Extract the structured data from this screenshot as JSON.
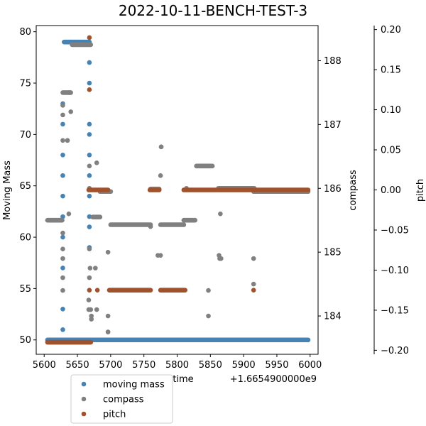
{
  "chart_data": {
    "type": "scatter",
    "title": "2022-10-11-BENCH-TEST-3",
    "xlabel": "time",
    "x_offset_label": "+1.6654900000e9",
    "x_ticks": [
      "5600",
      "5650",
      "5700",
      "5750",
      "5800",
      "5850",
      "5900",
      "5950",
      "6000"
    ],
    "xlim": [
      5588,
      6012
    ],
    "axes": {
      "left": {
        "label": "Moving Mass",
        "ylim": [
          48.6,
          80.6
        ],
        "ticks": [
          "50",
          "55",
          "60",
          "65",
          "70",
          "75",
          "80"
        ]
      },
      "right": {
        "label": "compass",
        "ylim": [
          183.4,
          188.55
        ],
        "ticks": [
          "184",
          "185",
          "186",
          "187",
          "188"
        ]
      },
      "right2": {
        "label": "pitch",
        "ylim": [
          -0.205,
          0.205
        ],
        "ticks": [
          "0.20",
          "0.15",
          "0.10",
          "0.05",
          "0.00",
          "−0.05",
          "−0.10",
          "−0.15",
          "−0.20"
        ]
      }
    },
    "legend": {
      "placement": "bottom-left"
    },
    "series": [
      {
        "name": "moving mass",
        "axis": "left",
        "color": "#4682b4",
        "segments": [
          [
            5605,
            5670,
            50
          ],
          [
            5670,
            5997,
            50
          ],
          [
            5630,
            5668,
            79
          ]
        ],
        "points": [
          [
            5628,
            51
          ],
          [
            5628,
            53
          ],
          [
            5628,
            57
          ],
          [
            5628,
            60
          ],
          [
            5628,
            62
          ],
          [
            5628,
            64
          ],
          [
            5628,
            66
          ],
          [
            5628,
            68
          ],
          [
            5628,
            71
          ],
          [
            5628,
            73
          ],
          [
            5668,
            59
          ],
          [
            5668,
            61
          ],
          [
            5668,
            62
          ],
          [
            5668,
            64
          ],
          [
            5668,
            66
          ],
          [
            5668,
            68
          ],
          [
            5668,
            70
          ],
          [
            5668,
            71
          ],
          [
            5668,
            75
          ],
          [
            5668,
            77
          ]
        ]
      },
      {
        "name": "compass",
        "axis": "right",
        "color": "#808080",
        "segments": [
          [
            5605,
            5627,
            185.5
          ],
          [
            5628,
            5640,
            187.5
          ],
          [
            5642,
            5670,
            188.25
          ],
          [
            5673,
            5684,
            185.55
          ],
          [
            5684,
            5700,
            185.95
          ],
          [
            5700,
            5760,
            185.43
          ],
          [
            5760,
            5773,
            185.99
          ],
          [
            5775,
            5810,
            185.43
          ],
          [
            5810,
            5827,
            185.5
          ],
          [
            5829,
            5853,
            186.35
          ],
          [
            5862,
            5915,
            186.0
          ],
          [
            5915,
            5997,
            185.95
          ]
        ],
        "points": [
          [
            5628,
            184.4
          ],
          [
            5628,
            184.6
          ],
          [
            5628,
            184.9
          ],
          [
            5628,
            185.05
          ],
          [
            5628,
            185.3
          ],
          [
            5628,
            186.75
          ],
          [
            5628,
            187.15
          ],
          [
            5628,
            187.3
          ],
          [
            5635,
            186.75
          ],
          [
            5635,
            186.75
          ],
          [
            5637,
            185.6
          ],
          [
            5638,
            187.5
          ],
          [
            5640,
            187.2
          ],
          [
            5667,
            184.1
          ],
          [
            5667,
            184.25
          ],
          [
            5668,
            184.6
          ],
          [
            5668,
            185.05
          ],
          [
            5668,
            186.0
          ],
          [
            5668,
            186.35
          ],
          [
            5670,
            184.1
          ],
          [
            5671,
            184.0
          ],
          [
            5671,
            183.95
          ],
          [
            5669,
            184.75
          ],
          [
            5677,
            184.75
          ],
          [
            5678,
            185.55
          ],
          [
            5679,
            184.1
          ],
          [
            5679,
            186.4
          ],
          [
            5696,
            183.75
          ],
          [
            5696,
            183.75
          ],
          [
            5696,
            184.0
          ],
          [
            5696,
            185.0
          ],
          [
            5776,
            186.65
          ],
          [
            5776,
            186.65
          ],
          [
            5775,
            186.2
          ],
          [
            5775,
            184.95
          ],
          [
            5814,
            186.0
          ],
          [
            5760,
            185.4
          ],
          [
            5771,
            184.95
          ],
          [
            5847,
            184.4
          ],
          [
            5847,
            184.0
          ],
          [
            5863,
            184.95
          ],
          [
            5864,
            184.9
          ],
          [
            5865,
            185.6
          ],
          [
            5866,
            184.9
          ],
          [
            5915,
            184.9
          ],
          [
            5915,
            184.5
          ],
          [
            5916,
            186.0
          ]
        ]
      },
      {
        "name": "pitch",
        "axis": "right2",
        "color": "#a0522d",
        "segments": [
          [
            5605,
            5670,
            -0.19
          ],
          [
            5667,
            5696,
            0.0
          ],
          [
            5698,
            5760,
            -0.125
          ],
          [
            5759,
            5773,
            0.0
          ],
          [
            5775,
            5812,
            -0.125
          ],
          [
            5810,
            5997,
            0.0
          ]
        ],
        "points": [
          [
            5668,
            0.19
          ],
          [
            5668,
            0.125
          ],
          [
            5668,
            -0.125
          ],
          [
            5680,
            -0.125
          ],
          [
            5915,
            -0.125
          ]
        ]
      }
    ]
  }
}
